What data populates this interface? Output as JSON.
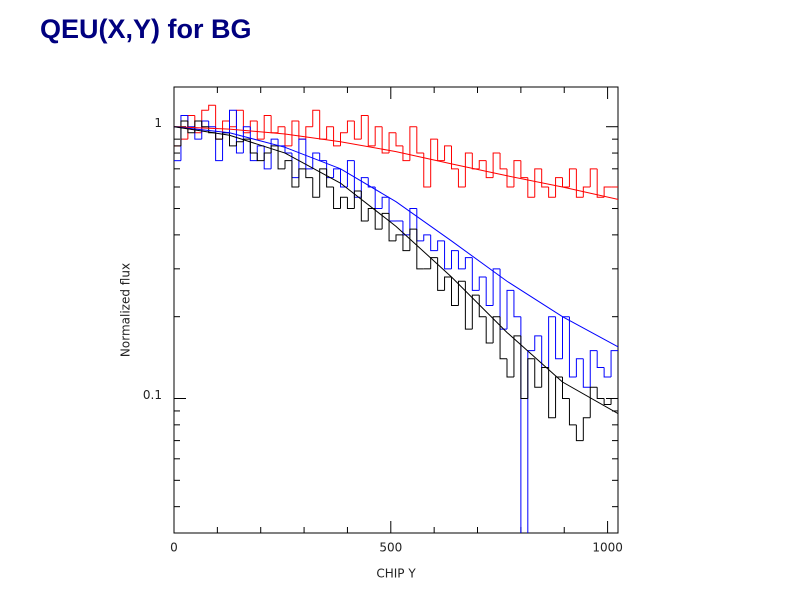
{
  "chart_data": {
    "type": "step-histogram",
    "title": "QEU(X,Y) for BG",
    "x_label": "CHIP Y",
    "y_label": "Normalized flux",
    "log_y": true,
    "xlim": [
      0,
      1024
    ],
    "ylim": [
      0.032,
      1.4
    ],
    "xticks": [
      0,
      500,
      1000
    ],
    "xminorticks": [
      100,
      200,
      300,
      400,
      600,
      700,
      800,
      900
    ],
    "yticks": [
      0.1,
      1
    ],
    "yminorticks": [
      0.04,
      0.05,
      0.06,
      0.07,
      0.08,
      0.09,
      0.2,
      0.3,
      0.4,
      0.5,
      0.6,
      0.7,
      0.8,
      0.9
    ],
    "bins": [
      0,
      16,
      32,
      48,
      64,
      80,
      96,
      112,
      128,
      144,
      160,
      176,
      192,
      208,
      224,
      240,
      256,
      272,
      288,
      304,
      320,
      336,
      352,
      368,
      384,
      400,
      416,
      432,
      448,
      464,
      480,
      496,
      512,
      528,
      544,
      560,
      576,
      592,
      608,
      624,
      640,
      656,
      672,
      688,
      704,
      720,
      736,
      752,
      768,
      784,
      800,
      816,
      832,
      848,
      864,
      880,
      896,
      912,
      928,
      944,
      960,
      976,
      992,
      1008,
      1024
    ],
    "series": [
      {
        "color": "#ff0000",
        "values": [
          0.85,
          0.9,
          1.1,
          0.95,
          1.15,
          1.2,
          0.9,
          1.05,
          1.0,
          1.15,
          0.95,
          1.05,
          0.9,
          1.1,
          0.95,
          1.0,
          0.85,
          1.05,
          0.9,
          1.0,
          1.15,
          0.9,
          1.0,
          0.85,
          0.95,
          1.05,
          0.9,
          1.1,
          0.85,
          1.0,
          0.8,
          0.95,
          0.85,
          0.75,
          1.0,
          0.8,
          0.6,
          0.9,
          0.75,
          0.85,
          0.7,
          0.6,
          0.8,
          0.7,
          0.75,
          0.65,
          0.8,
          0.7,
          0.6,
          0.75,
          0.65,
          0.55,
          0.7,
          0.6,
          0.55,
          0.65,
          0.6,
          0.7,
          0.55,
          0.6,
          0.7,
          0.55,
          0.6,
          0.6
        ]
      },
      {
        "color": "#0000ff",
        "values": [
          0.75,
          1.1,
          1.0,
          0.9,
          1.05,
          1.0,
          0.75,
          0.95,
          1.15,
          0.8,
          1.0,
          0.75,
          0.85,
          0.7,
          0.9,
          0.85,
          0.8,
          0.65,
          0.9,
          0.7,
          0.8,
          0.75,
          0.65,
          0.7,
          0.6,
          0.75,
          0.55,
          0.65,
          0.6,
          0.5,
          0.55,
          0.45,
          0.45,
          0.4,
          0.5,
          0.38,
          0.4,
          0.35,
          0.38,
          0.3,
          0.35,
          0.3,
          0.33,
          0.25,
          0.28,
          0.22,
          0.3,
          0.18,
          0.25,
          0.2,
          0.02,
          0.15,
          0.17,
          0.13,
          0.2,
          0.14,
          0.2,
          0.12,
          0.14,
          0.11,
          0.15,
          0.13,
          0.12,
          0.15
        ]
      },
      {
        "color": "#000000",
        "values": [
          0.85,
          1.05,
          0.95,
          1.05,
          1.0,
          0.95,
          0.9,
          0.95,
          0.85,
          0.88,
          0.9,
          0.8,
          0.75,
          0.8,
          0.85,
          0.7,
          0.75,
          0.6,
          0.7,
          0.65,
          0.55,
          0.7,
          0.6,
          0.5,
          0.55,
          0.5,
          0.58,
          0.45,
          0.5,
          0.42,
          0.48,
          0.38,
          0.4,
          0.35,
          0.42,
          0.3,
          0.3,
          0.33,
          0.25,
          0.28,
          0.22,
          0.27,
          0.18,
          0.24,
          0.2,
          0.16,
          0.2,
          0.14,
          0.12,
          0.17,
          0.1,
          0.14,
          0.11,
          0.13,
          0.085,
          0.12,
          0.1,
          0.08,
          0.07,
          0.085,
          0.11,
          0.1,
          0.095,
          0.1
        ]
      }
    ],
    "curve_x": [
      0,
      128,
      256,
      384,
      512,
      640,
      768,
      896,
      1024
    ],
    "curves": [
      {
        "color": "#ff0000",
        "values": [
          1.0,
          0.98,
          0.94,
          0.88,
          0.81,
          0.73,
          0.66,
          0.6,
          0.54
        ]
      },
      {
        "color": "#0000ff",
        "values": [
          1.0,
          0.95,
          0.84,
          0.7,
          0.53,
          0.38,
          0.27,
          0.2,
          0.155
        ]
      },
      {
        "color": "#000000",
        "values": [
          1.0,
          0.93,
          0.8,
          0.62,
          0.43,
          0.28,
          0.175,
          0.115,
          0.088
        ]
      }
    ]
  }
}
